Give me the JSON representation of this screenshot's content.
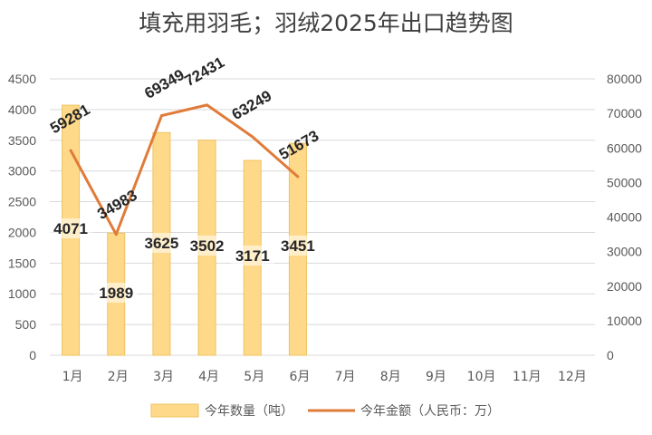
{
  "chart_data": {
    "type": "bar",
    "title": "填充用羽毛；羽绒2025年出口趋势图",
    "categories": [
      "1月",
      "2月",
      "3月",
      "4月",
      "5月",
      "6月",
      "7月",
      "8月",
      "9月",
      "10月",
      "11月",
      "12月"
    ],
    "series": [
      {
        "name": "今年数量（吨）",
        "type": "bar",
        "axis": "left",
        "color": "#FFD98A",
        "values": [
          4071,
          1989,
          3625,
          3502,
          3171,
          3451,
          null,
          null,
          null,
          null,
          null,
          null
        ],
        "labels": [
          "4071",
          "1989",
          "3625",
          "3502",
          "3171",
          "3451"
        ]
      },
      {
        "name": "今年金额（人民币：万）",
        "type": "line",
        "axis": "right",
        "color": "#E07B39",
        "values": [
          59281,
          34983,
          69349,
          72431,
          63249,
          51673,
          null,
          null,
          null,
          null,
          null,
          null
        ],
        "labels": [
          "59281",
          "34983",
          "69349",
          "72431",
          "63249",
          "51673"
        ]
      }
    ],
    "y_left": {
      "range": [
        0,
        4500
      ],
      "ticks": [
        "0",
        "500",
        "1000",
        "1500",
        "2000",
        "2500",
        "3000",
        "3500",
        "4000",
        "4500"
      ]
    },
    "y_right": {
      "range": [
        0,
        80000
      ],
      "ticks": [
        "0",
        "10000",
        "20000",
        "30000",
        "40000",
        "50000",
        "60000",
        "70000",
        "80000"
      ]
    },
    "grid": true,
    "legend": "bottom"
  }
}
